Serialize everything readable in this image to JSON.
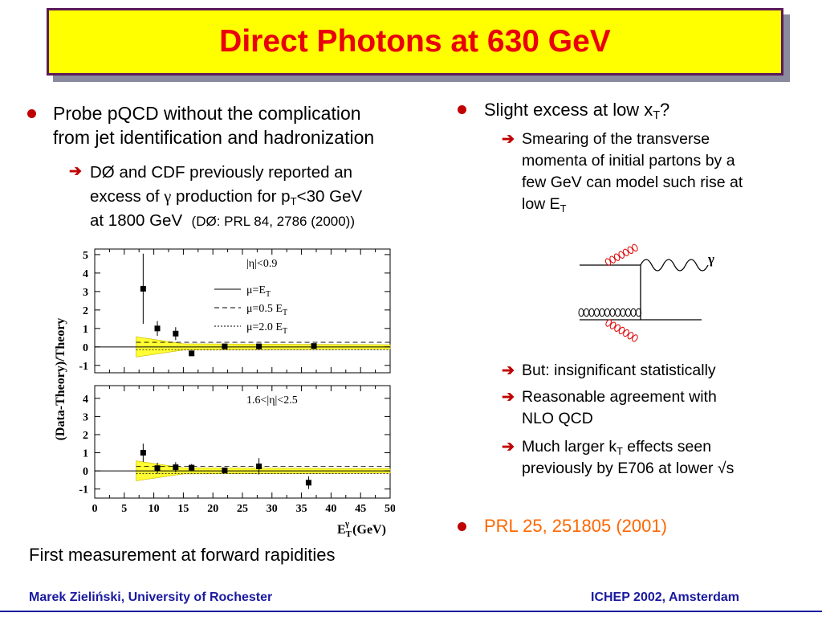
{
  "title": "Direct Photons at 630 GeV",
  "left": {
    "bullet1": {
      "line1": "Probe pQCD without the complication",
      "line2": "from jet identification and hadronization"
    },
    "sub1": {
      "line1": "DØ and CDF previously reported an",
      "line2a": "excess of ",
      "gamma": "γ",
      "line2b": " production for p",
      "line2sub": "T",
      "line2c": "<30 GeV",
      "line3": "at 1800 GeV",
      "ref": "(DØ: PRL 84, 2786 (2000))"
    },
    "caption": "First measurement at forward rapidities"
  },
  "right": {
    "bullet1": {
      "text": "Slight excess at low x",
      "sub": "T",
      "tail": "?"
    },
    "sub1": {
      "line1": "Smearing of the transverse",
      "line2": "momenta of initial partons by a",
      "line3": "few GeV can model such rise at",
      "line4": "low E",
      "line4sub": "T"
    },
    "diagram_gamma": "γ",
    "sub2": "But: insignificant statistically",
    "sub3": {
      "line1": "Reasonable agreement with",
      "line2": "NLO QCD"
    },
    "sub4": {
      "line1a": "Much larger k",
      "line1sub": "T",
      "line1b": " effects seen",
      "line2": "previously by E706 at lower √s"
    },
    "bullet2": "PRL 25, 251805 (2001)"
  },
  "footer": {
    "left": "Marek Zieliński, University of Rochester",
    "right": "ICHEP 2002, Amsterdam"
  },
  "colors": {
    "title_text": "#e8000b",
    "title_bg": "#ffff00",
    "bullet": "#c00000",
    "footer": "#1a1aa0",
    "reference": "#ff6600",
    "band": "#ffff33"
  },
  "chart_data": [
    {
      "type": "scatter",
      "panel": "top",
      "label": "|η|<0.9",
      "ylabel": "(Data-Theory)/Theory",
      "xlim": [
        0,
        50
      ],
      "ylim": [
        -1,
        5
      ],
      "yticks": [
        -1,
        0,
        1,
        2,
        3,
        4,
        5
      ],
      "legend": [
        "μ=E_T",
        "μ=0.5 E_T",
        "μ=2.0 E_T"
      ],
      "x": [
        8.2,
        10.6,
        13.7,
        16.4,
        22.0,
        27.8,
        37.1
      ],
      "y": [
        3.15,
        1.0,
        0.72,
        -0.35,
        0.03,
        0.03,
        0.05
      ],
      "yerr": [
        1.9,
        0.4,
        0.35,
        0.12,
        0.07,
        0.1,
        0.1
      ],
      "reference_lines": {
        "mu_0.5ET": 0.25,
        "mu_2.0ET": -0.15
      },
      "band": {
        "x": [
          7,
          50
        ],
        "halfwidth_start": 0.55,
        "halfwidth_end": 0.12
      }
    },
    {
      "type": "scatter",
      "panel": "bottom",
      "label": "1.6<|η|<2.5",
      "xlabel": "E_T^γ (GeV)",
      "xlim": [
        0,
        50
      ],
      "ylim": [
        -1,
        5
      ],
      "xticks": [
        0,
        5,
        10,
        15,
        20,
        25,
        30,
        35,
        40,
        45,
        50
      ],
      "yticks": [
        -1,
        0,
        1,
        2,
        3,
        4
      ],
      "x": [
        8.2,
        10.6,
        13.7,
        16.4,
        22.0,
        27.8,
        36.2
      ],
      "y": [
        1.0,
        0.15,
        0.2,
        0.18,
        0.03,
        0.25,
        -0.65
      ],
      "yerr": [
        0.5,
        0.3,
        0.28,
        0.2,
        0.15,
        0.45,
        0.35
      ],
      "reference_lines": {
        "mu_0.5ET": 0.25,
        "mu_2.0ET": -0.15
      },
      "band": {
        "x": [
          7,
          50
        ],
        "halfwidth_start": 0.55,
        "halfwidth_end": 0.12
      }
    }
  ]
}
